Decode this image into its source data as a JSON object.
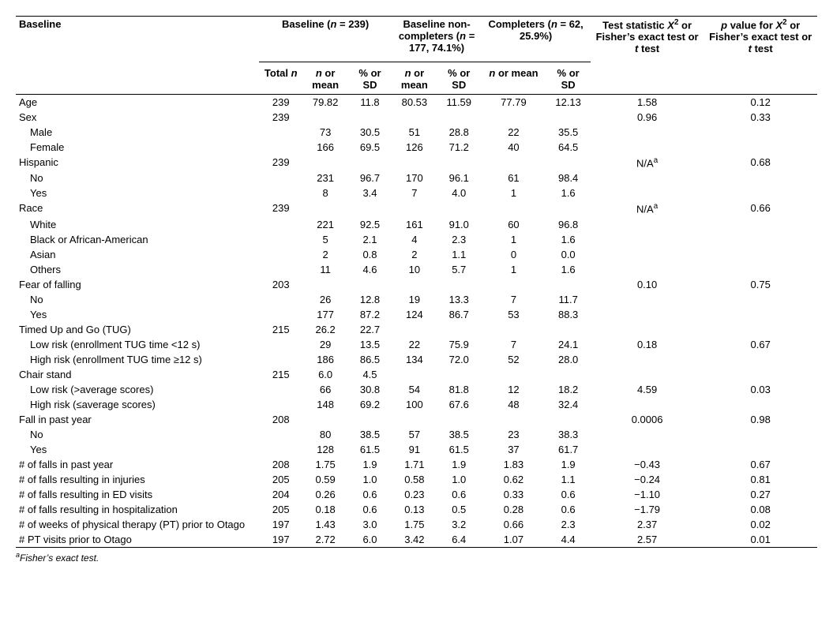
{
  "columns": {
    "row_label_header": "Baseline",
    "group_baseline": "Baseline (<span class=\"ital\">n</span> = 239)",
    "group_noncomp": "Baseline non-completers (<span class=\"ital\">n</span> = 177, 74.1%)",
    "group_comp": "Completers (<span class=\"ital\">n</span> = 62, 25.9%)",
    "test_stat": "Test statistic <span class=\"ital\">X</span><sup>2</sup> or Fisher’s exact test or <span class=\"ital\">t</span> test",
    "pval": "<span class=\"ital\">p</span> value for <span class=\"ital\">X</span><sup>2</sup> or Fisher’s exact test or <span class=\"ital\">t</span> test",
    "sub_total_n": "Total <span class=\"ital\">n</span>",
    "sub_n_or_mean": "<span class=\"ital\">n</span> or mean",
    "sub_pct_or_sd": "% or SD"
  },
  "rows": [
    {
      "label": "Age",
      "indent": 0,
      "totaln": "239",
      "b_n": "79.82",
      "b_sd": "11.8",
      "nc_n": "80.53",
      "nc_sd": "11.59",
      "c_n": "77.79",
      "c_sd": "12.13",
      "stat": "1.58",
      "p": "0.12"
    },
    {
      "label": "Sex",
      "indent": 0,
      "totaln": "239",
      "b_n": "",
      "b_sd": "",
      "nc_n": "",
      "nc_sd": "",
      "c_n": "",
      "c_sd": "",
      "stat": "0.96",
      "p": "0.33"
    },
    {
      "label": "Male",
      "indent": 1,
      "totaln": "",
      "b_n": "73",
      "b_sd": "30.5",
      "nc_n": "51",
      "nc_sd": "28.8",
      "c_n": "22",
      "c_sd": "35.5",
      "stat": "",
      "p": ""
    },
    {
      "label": "Female",
      "indent": 1,
      "totaln": "",
      "b_n": "166",
      "b_sd": "69.5",
      "nc_n": "126",
      "nc_sd": "71.2",
      "c_n": "40",
      "c_sd": "64.5",
      "stat": "",
      "p": ""
    },
    {
      "label": "Hispanic",
      "indent": 0,
      "totaln": "239",
      "b_n": "",
      "b_sd": "",
      "nc_n": "",
      "nc_sd": "",
      "c_n": "",
      "c_sd": "",
      "stat": "N/A<sup>a</sup>",
      "p": "0.68"
    },
    {
      "label": "No",
      "indent": 1,
      "totaln": "",
      "b_n": "231",
      "b_sd": "96.7",
      "nc_n": "170",
      "nc_sd": "96.1",
      "c_n": "61",
      "c_sd": "98.4",
      "stat": "",
      "p": ""
    },
    {
      "label": "Yes",
      "indent": 1,
      "totaln": "",
      "b_n": "8",
      "b_sd": "3.4",
      "nc_n": "7",
      "nc_sd": "4.0",
      "c_n": "1",
      "c_sd": "1.6",
      "stat": "",
      "p": ""
    },
    {
      "label": "Race",
      "indent": 0,
      "totaln": "239",
      "b_n": "",
      "b_sd": "",
      "nc_n": "",
      "nc_sd": "",
      "c_n": "",
      "c_sd": "",
      "stat": "N/A<sup>a</sup>",
      "p": "0.66"
    },
    {
      "label": "White",
      "indent": 1,
      "totaln": "",
      "b_n": "221",
      "b_sd": "92.5",
      "nc_n": "161",
      "nc_sd": "91.0",
      "c_n": "60",
      "c_sd": "96.8",
      "stat": "",
      "p": ""
    },
    {
      "label": "Black or African-American",
      "indent": 1,
      "totaln": "",
      "b_n": "5",
      "b_sd": "2.1",
      "nc_n": "4",
      "nc_sd": "2.3",
      "c_n": "1",
      "c_sd": "1.6",
      "stat": "",
      "p": ""
    },
    {
      "label": "Asian",
      "indent": 1,
      "totaln": "",
      "b_n": "2",
      "b_sd": "0.8",
      "nc_n": "2",
      "nc_sd": "1.1",
      "c_n": "0",
      "c_sd": "0.0",
      "stat": "",
      "p": ""
    },
    {
      "label": "Others",
      "indent": 1,
      "totaln": "",
      "b_n": "11",
      "b_sd": "4.6",
      "nc_n": "10",
      "nc_sd": "5.7",
      "c_n": "1",
      "c_sd": "1.6",
      "stat": "",
      "p": ""
    },
    {
      "label": "Fear of falling",
      "indent": 0,
      "totaln": "203",
      "b_n": "",
      "b_sd": "",
      "nc_n": "",
      "nc_sd": "",
      "c_n": "",
      "c_sd": "",
      "stat": "0.10",
      "p": "0.75"
    },
    {
      "label": "No",
      "indent": 1,
      "totaln": "",
      "b_n": "26",
      "b_sd": "12.8",
      "nc_n": "19",
      "nc_sd": "13.3",
      "c_n": "7",
      "c_sd": "11.7",
      "stat": "",
      "p": ""
    },
    {
      "label": "Yes",
      "indent": 1,
      "totaln": "",
      "b_n": "177",
      "b_sd": "87.2",
      "nc_n": "124",
      "nc_sd": "86.7",
      "c_n": "53",
      "c_sd": "88.3",
      "stat": "",
      "p": ""
    },
    {
      "label": "Timed Up and Go (TUG)",
      "indent": 0,
      "totaln": "215",
      "b_n": "26.2",
      "b_sd": "22.7",
      "nc_n": "",
      "nc_sd": "",
      "c_n": "",
      "c_sd": "",
      "stat": "",
      "p": ""
    },
    {
      "label": "Low risk (enrollment TUG time <12 s)",
      "indent": 1,
      "totaln": "",
      "b_n": "29",
      "b_sd": "13.5",
      "nc_n": "22",
      "nc_sd": "75.9",
      "c_n": "7",
      "c_sd": "24.1",
      "stat": "0.18",
      "p": "0.67"
    },
    {
      "label": "High risk (enrollment TUG time ≥12 s)",
      "indent": 1,
      "totaln": "",
      "b_n": "186",
      "b_sd": "86.5",
      "nc_n": "134",
      "nc_sd": "72.0",
      "c_n": "52",
      "c_sd": "28.0",
      "stat": "",
      "p": ""
    },
    {
      "label": "Chair stand",
      "indent": 0,
      "totaln": "215",
      "b_n": "6.0",
      "b_sd": "4.5",
      "nc_n": "",
      "nc_sd": "",
      "c_n": "",
      "c_sd": "",
      "stat": "",
      "p": ""
    },
    {
      "label": "Low risk (>average scores)",
      "indent": 1,
      "totaln": "",
      "b_n": "66",
      "b_sd": "30.8",
      "nc_n": "54",
      "nc_sd": "81.8",
      "c_n": "12",
      "c_sd": "18.2",
      "stat": "4.59",
      "p": "0.03"
    },
    {
      "label": "High risk (≤average scores)",
      "indent": 1,
      "totaln": "",
      "b_n": "148",
      "b_sd": "69.2",
      "nc_n": "100",
      "nc_sd": "67.6",
      "c_n": "48",
      "c_sd": "32.4",
      "stat": "",
      "p": ""
    },
    {
      "label": "Fall in past year",
      "indent": 0,
      "totaln": "208",
      "b_n": "",
      "b_sd": "",
      "nc_n": "",
      "nc_sd": "",
      "c_n": "",
      "c_sd": "",
      "stat": "0.0006",
      "p": "0.98"
    },
    {
      "label": "No",
      "indent": 1,
      "totaln": "",
      "b_n": "80",
      "b_sd": "38.5",
      "nc_n": "57",
      "nc_sd": "38.5",
      "c_n": "23",
      "c_sd": "38.3",
      "stat": "",
      "p": ""
    },
    {
      "label": "Yes",
      "indent": 1,
      "totaln": "",
      "b_n": "128",
      "b_sd": "61.5",
      "nc_n": "91",
      "nc_sd": "61.5",
      "c_n": "37",
      "c_sd": "61.7",
      "stat": "",
      "p": ""
    },
    {
      "label": "# of falls in past year",
      "indent": 0,
      "totaln": "208",
      "b_n": "1.75",
      "b_sd": "1.9",
      "nc_n": "1.71",
      "nc_sd": "1.9",
      "c_n": "1.83",
      "c_sd": "1.9",
      "stat": "−0.43",
      "p": "0.67"
    },
    {
      "label": "# of falls resulting in injuries",
      "indent": 0,
      "totaln": "205",
      "b_n": "0.59",
      "b_sd": "1.0",
      "nc_n": "0.58",
      "nc_sd": "1.0",
      "c_n": "0.62",
      "c_sd": "1.1",
      "stat": "−0.24",
      "p": "0.81"
    },
    {
      "label": "# of falls resulting in ED visits",
      "indent": 0,
      "totaln": "204",
      "b_n": "0.26",
      "b_sd": "0.6",
      "nc_n": "0.23",
      "nc_sd": "0.6",
      "c_n": "0.33",
      "c_sd": "0.6",
      "stat": "−1.10",
      "p": "0.27"
    },
    {
      "label": "# of falls resulting in hospitalization",
      "indent": 0,
      "totaln": "205",
      "b_n": "0.18",
      "b_sd": "0.6",
      "nc_n": "0.13",
      "nc_sd": "0.5",
      "c_n": "0.28",
      "c_sd": "0.6",
      "stat": "−1.79",
      "p": "0.08"
    },
    {
      "label": "# of weeks of physical therapy (PT) prior to Otago",
      "indent": 0,
      "totaln": "197",
      "b_n": "1.43",
      "b_sd": "3.0",
      "nc_n": "1.75",
      "nc_sd": "3.2",
      "c_n": "0.66",
      "c_sd": "2.3",
      "stat": "2.37",
      "p": "0.02"
    },
    {
      "label": "# PT visits prior to Otago",
      "indent": 0,
      "totaln": "197",
      "b_n": "2.72",
      "b_sd": "6.0",
      "nc_n": "3.42",
      "nc_sd": "6.4",
      "c_n": "1.07",
      "c_sd": "4.4",
      "stat": "2.57",
      "p": "0.01"
    }
  ],
  "footnote": "<sup>a</sup>Fisher’s exact test.",
  "col_widths": {
    "label": 300,
    "totaln": 55,
    "bn": 55,
    "bsd": 55,
    "ncn": 55,
    "ncsd": 55,
    "cn": 80,
    "csd": 55,
    "stat": 140,
    "p": 140
  }
}
